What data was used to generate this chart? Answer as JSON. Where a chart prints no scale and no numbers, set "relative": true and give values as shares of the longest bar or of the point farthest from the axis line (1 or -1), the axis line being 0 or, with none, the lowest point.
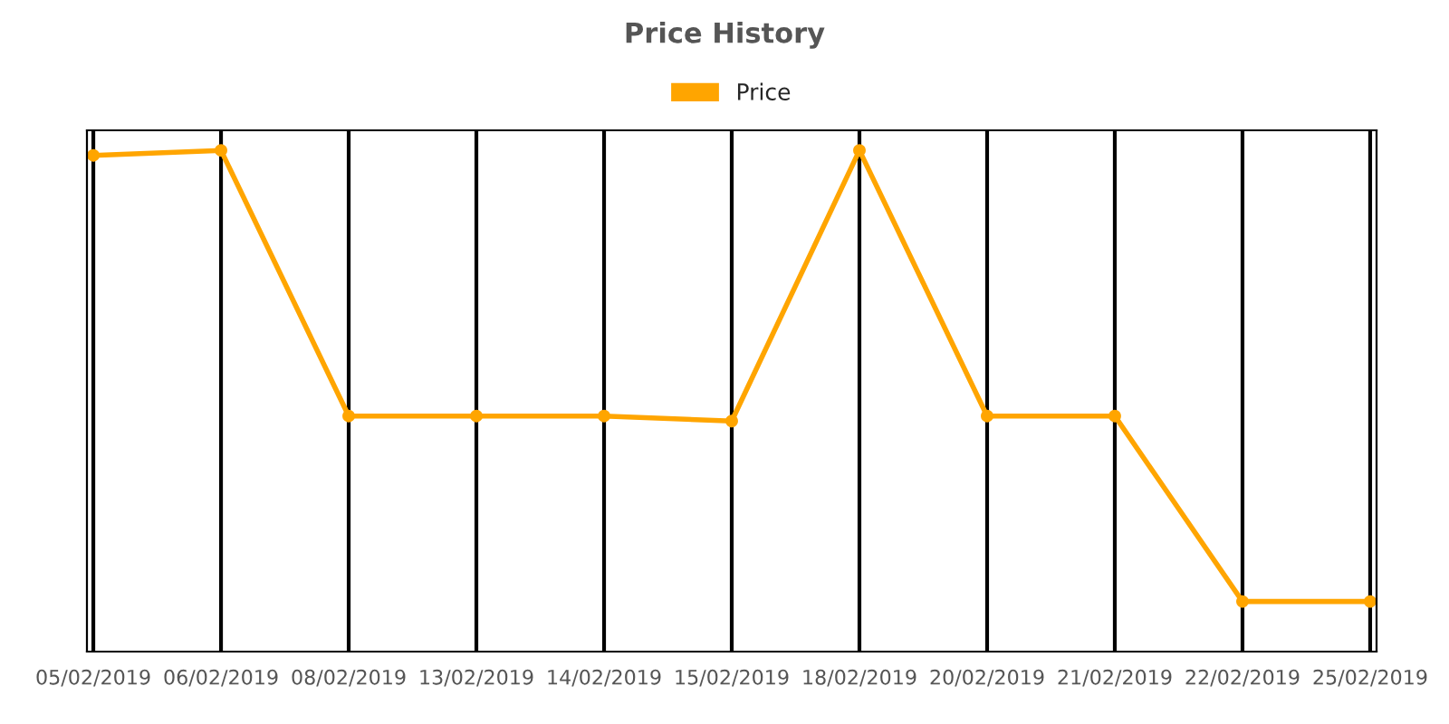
{
  "chart_data": {
    "type": "line",
    "title": "Price History",
    "relative": true,
    "categories": [
      "05/02/2019",
      "06/02/2019",
      "08/02/2019",
      "13/02/2019",
      "14/02/2019",
      "15/02/2019",
      "18/02/2019",
      "20/02/2019",
      "21/02/2019",
      "22/02/2019",
      "25/02/2019"
    ],
    "series": [
      {
        "name": "Price",
        "color": "#ffa500",
        "values": [
          0.99,
          1.0,
          0.47,
          0.47,
          0.47,
          0.46,
          1.0,
          0.47,
          0.47,
          0.1,
          0.1
        ]
      }
    ],
    "marker": "circle",
    "grid": "x",
    "legend": "top"
  }
}
